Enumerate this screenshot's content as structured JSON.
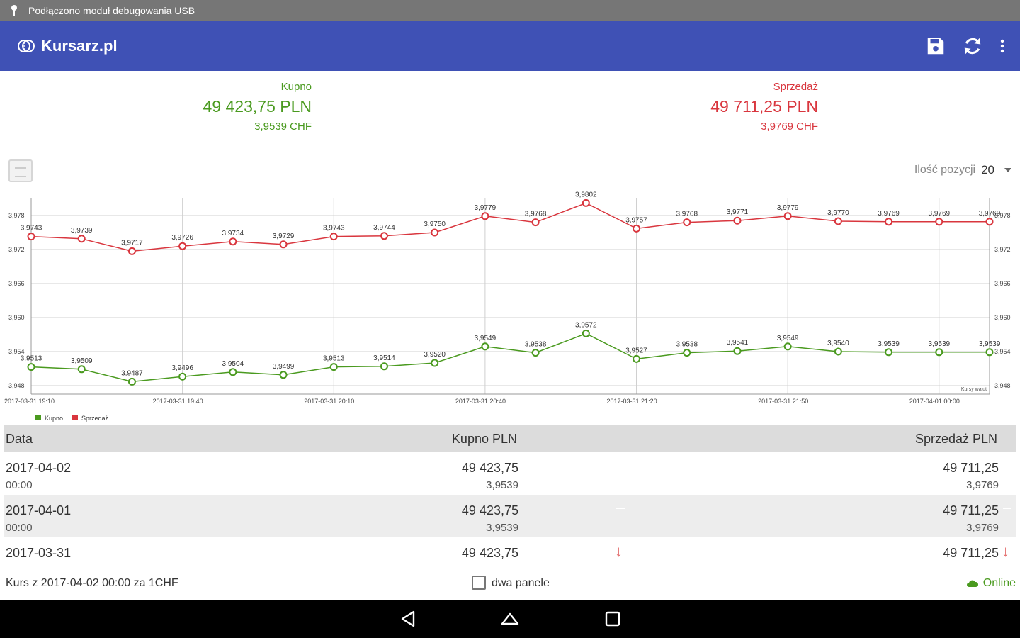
{
  "status_bar": {
    "notification": "Podłączono moduł debugowania USB"
  },
  "app_bar": {
    "title": "Kursarz.pl",
    "icons": [
      "save-icon",
      "refresh-icon",
      "more-vert-icon"
    ]
  },
  "summary": {
    "buy": {
      "label": "Kupno",
      "amount": "49 423,75 PLN",
      "rate": "3,9539 CHF"
    },
    "sell": {
      "label": "Sprzedaż",
      "amount": "49 711,25 PLN",
      "rate": "3,9769 CHF"
    }
  },
  "controls": {
    "positions_label": "Ilość pozycji",
    "positions_value": "20"
  },
  "colors": {
    "buy": "#4a9a1f",
    "sell": "#d9363e",
    "appbar": "#3f51b5"
  },
  "chart_data": {
    "type": "line",
    "y_ticks": [
      "3,978",
      "3,972",
      "3,966",
      "3,960",
      "3,954",
      "3,948"
    ],
    "y_tick_values": [
      3.978,
      3.972,
      3.966,
      3.96,
      3.954,
      3.948
    ],
    "ylim": [
      3.9465,
      3.981
    ],
    "x_tick_labels": [
      "2017-03-31 19:10",
      "2017-03-31 19:40",
      "2017-03-31 20:10",
      "2017-03-31 20:40",
      "2017-03-31 21:20",
      "2017-03-31 21:50",
      "2017-04-01 00:00"
    ],
    "x_tick_indices": [
      0,
      3,
      6,
      9,
      12,
      15,
      18
    ],
    "series": [
      {
        "name": "Kupno",
        "values": [
          3.9513,
          3.9509,
          3.9487,
          3.9496,
          3.9504,
          3.9499,
          3.9513,
          3.9514,
          3.952,
          3.9549,
          3.9538,
          3.9572,
          3.9527,
          3.9538,
          3.9541,
          3.9549,
          3.954,
          3.9539,
          3.9539,
          3.9539
        ],
        "labels": [
          "3,9513",
          "3,9509",
          "3,9487",
          "3,9496",
          "3,9504",
          "3,9499",
          "3,9513",
          "3,9514",
          "3,9520",
          "3,9549",
          "3,9538",
          "3,9572",
          "3,9527",
          "3,9538",
          "3,9541",
          "3,9549",
          "3,9540",
          "3,9539",
          "3,9539",
          "3,9539"
        ]
      },
      {
        "name": "Sprzedaż",
        "values": [
          3.9743,
          3.9739,
          3.9717,
          3.9726,
          3.9734,
          3.9729,
          3.9743,
          3.9744,
          3.975,
          3.9779,
          3.9768,
          3.9802,
          3.9757,
          3.9768,
          3.9771,
          3.9779,
          3.977,
          3.9769,
          3.9769,
          3.9769
        ],
        "labels": [
          "3,9743",
          "3,9739",
          "3,9717",
          "3,9726",
          "3,9734",
          "3,9729",
          "3,9743",
          "3,9744",
          "3,9750",
          "3,9779",
          "3,9768",
          "3,9802",
          "3,9757",
          "3,9768",
          "3,9771",
          "3,9779",
          "3,9770",
          "3,9769",
          "3,9769",
          "3,9769"
        ]
      }
    ],
    "annotation": "Kursy walut",
    "legend": [
      "Kupno",
      "Sprzedaż"
    ],
    "legend_position": "bottom-left",
    "grid": true
  },
  "table": {
    "headers": [
      "Data",
      "Kupno PLN",
      "Sprzedaż PLN"
    ],
    "rows": [
      {
        "date": "2017-04-02",
        "time": "00:00",
        "buy": "49 423,75",
        "buy_rate": "3,9539",
        "sell": "49 711,25",
        "sell_rate": "3,9769"
      },
      {
        "date": "2017-04-01",
        "time": "00:00",
        "buy": "49 423,75",
        "buy_rate": "3,9539",
        "sell": "49 711,25",
        "sell_rate": "3,9769"
      },
      {
        "date": "2017-03-31",
        "time": "",
        "buy": "49 423,75",
        "buy_rate": "",
        "sell": "49 711,25",
        "sell_rate": ""
      }
    ]
  },
  "footer": {
    "rate_info": "Kurs z 2017-04-02 00:00 za 1CHF",
    "two_panels_label": "dwa panele",
    "online_label": "Online"
  }
}
